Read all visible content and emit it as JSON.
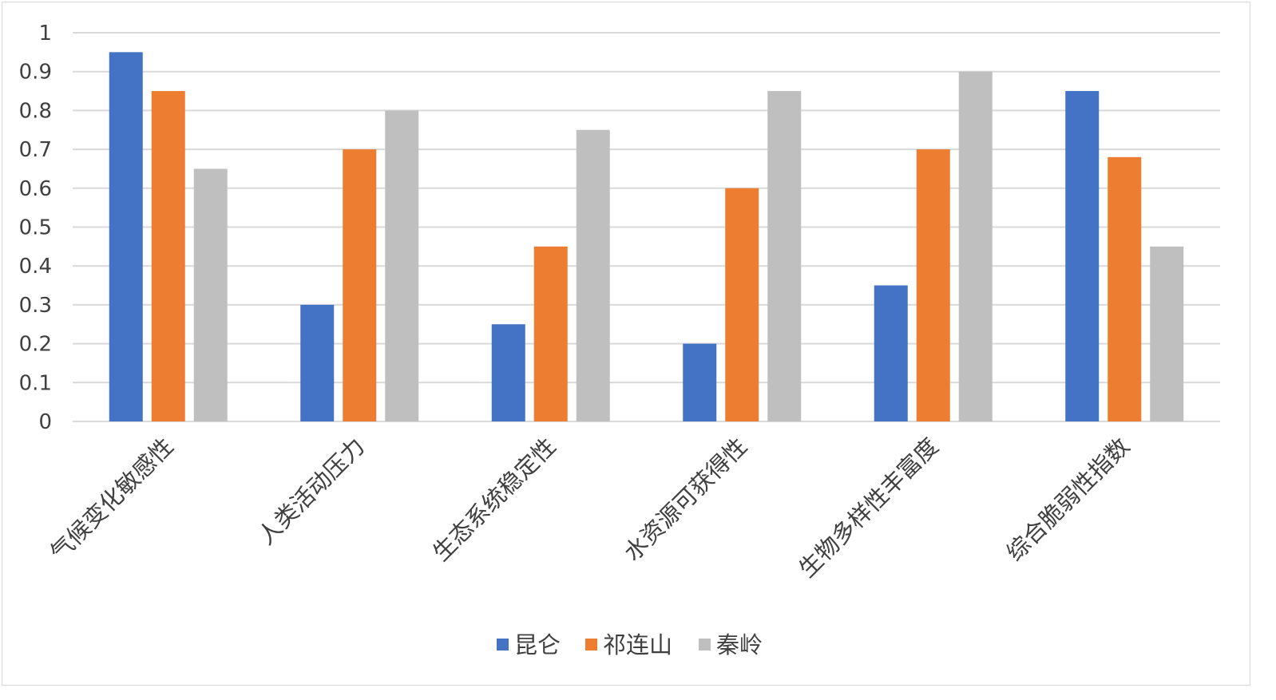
{
  "chart_data": {
    "type": "bar",
    "title": "",
    "xlabel": "",
    "ylabel": "",
    "ylim": [
      0,
      1
    ],
    "yticks": [
      0,
      0.1,
      0.2,
      0.3,
      0.4,
      0.5,
      0.6,
      0.7,
      0.8,
      0.9,
      1
    ],
    "ytick_labels": [
      "0",
      "0.1",
      "0.2",
      "0.3",
      "0.4",
      "0.5",
      "0.6",
      "0.7",
      "0.8",
      "0.9",
      "1"
    ],
    "grid": "horizontal",
    "legend_position": "bottom",
    "categories": [
      "气候变化敏感性",
      "人类活动压力",
      "生态系统稳定性",
      "水资源可获得性",
      "生物多样性丰富度",
      "综合脆弱性指数"
    ],
    "series": [
      {
        "name": "昆仑",
        "color": "#4472C4",
        "values": [
          0.95,
          0.3,
          0.25,
          0.2,
          0.35,
          0.85
        ]
      },
      {
        "name": "祁连山",
        "color": "#ED7D31",
        "values": [
          0.85,
          0.7,
          0.45,
          0.6,
          0.7,
          0.68
        ]
      },
      {
        "name": "秦岭",
        "color": "#BFBFBF",
        "values": [
          0.65,
          0.8,
          0.75,
          0.85,
          0.9,
          0.45
        ]
      }
    ],
    "colors": {
      "gridline": "#D9D9D9",
      "text": "#404040",
      "frame": "#D9D9D9"
    }
  }
}
